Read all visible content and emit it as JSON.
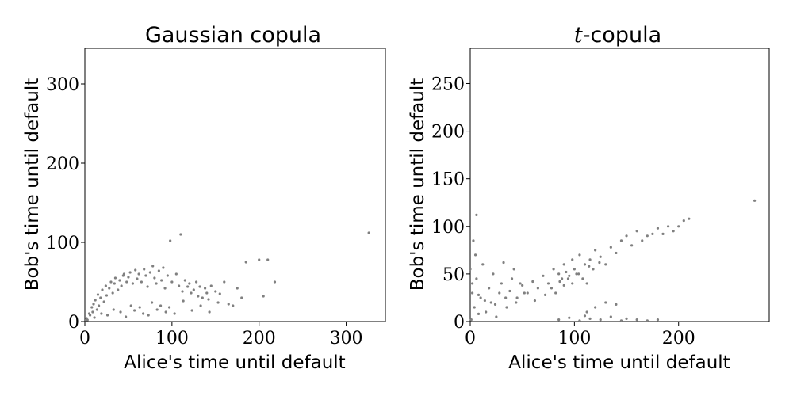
{
  "chart_data": [
    {
      "type": "scatter",
      "title": "Gaussian copula",
      "xlabel": "Alice's time until default",
      "ylabel": "Bob's time until default",
      "xlim": [
        0,
        345
      ],
      "ylim": [
        0,
        345
      ],
      "xticks": [
        0,
        100,
        200,
        300
      ],
      "yticks": [
        0,
        100,
        200,
        300
      ],
      "grid": false,
      "marker_color": "#808080",
      "points": {
        "x": [
          2,
          5,
          8,
          10,
          12,
          14,
          15,
          18,
          20,
          22,
          24,
          25,
          28,
          30,
          32,
          34,
          35,
          38,
          40,
          42,
          44,
          45,
          48,
          50,
          52,
          55,
          58,
          60,
          62,
          65,
          68,
          70,
          72,
          75,
          78,
          80,
          82,
          85,
          88,
          90,
          92,
          95,
          98,
          100,
          105,
          108,
          110,
          112,
          115,
          118,
          120,
          122,
          125,
          128,
          130,
          132,
          135,
          138,
          140,
          142,
          145,
          150,
          155,
          160,
          165,
          170,
          175,
          180,
          185,
          200,
          205,
          210,
          218,
          326,
          3,
          6,
          9,
          11,
          16,
          19,
          26,
          33,
          41,
          47,
          53,
          57,
          63,
          67,
          73,
          77,
          83,
          87,
          93,
          97,
          103,
          113,
          123,
          133,
          143,
          153
        ],
        "y": [
          4,
          10,
          18,
          22,
          27,
          15,
          34,
          30,
          40,
          25,
          45,
          33,
          42,
          50,
          36,
          48,
          55,
          40,
          52,
          45,
          58,
          60,
          50,
          56,
          62,
          48,
          65,
          54,
          60,
          50,
          66,
          58,
          44,
          62,
          70,
          55,
          48,
          64,
          52,
          68,
          42,
          58,
          102,
          50,
          60,
          45,
          110,
          38,
          52,
          44,
          48,
          36,
          40,
          50,
          32,
          44,
          30,
          42,
          36,
          28,
          45,
          38,
          35,
          50,
          22,
          20,
          42,
          30,
          75,
          78,
          32,
          78,
          50,
          112,
          2,
          8,
          12,
          5,
          20,
          10,
          8,
          15,
          12,
          6,
          20,
          14,
          18,
          10,
          8,
          24,
          15,
          20,
          12,
          18,
          10,
          26,
          14,
          20,
          12,
          24
        ]
      }
    },
    {
      "type": "scatter",
      "title": "t-copula",
      "title_italic_part": "t",
      "title_rest": "-copula",
      "xlabel": "Alice's time until default",
      "ylabel": "Bob's time until default",
      "xlim": [
        0,
        287
      ],
      "ylim": [
        0,
        287
      ],
      "xticks": [
        0,
        100,
        200
      ],
      "yticks": [
        0,
        50,
        100,
        150,
        200,
        250
      ],
      "grid": false,
      "marker_color": "#808080",
      "points": {
        "x": [
          1,
          2,
          4,
          6,
          8,
          10,
          12,
          15,
          18,
          20,
          22,
          25,
          28,
          30,
          32,
          35,
          38,
          40,
          42,
          45,
          48,
          50,
          55,
          60,
          65,
          70,
          75,
          80,
          85,
          88,
          90,
          92,
          95,
          98,
          100,
          102,
          105,
          108,
          110,
          112,
          115,
          118,
          120,
          125,
          130,
          135,
          140,
          145,
          150,
          155,
          160,
          165,
          170,
          175,
          180,
          185,
          190,
          195,
          200,
          205,
          210,
          273,
          6,
          3,
          5,
          85,
          95,
          105,
          110,
          115,
          125,
          135,
          145,
          150,
          160,
          170,
          180,
          120,
          112,
          130,
          140,
          0,
          2,
          8,
          14,
          24,
          34,
          44,
          52,
          62,
          72,
          78,
          82,
          86,
          90,
          94,
          98,
          104,
          114,
          124
        ],
        "y": [
          2,
          30,
          15,
          45,
          8,
          25,
          60,
          10,
          35,
          20,
          50,
          5,
          30,
          40,
          62,
          15,
          32,
          45,
          55,
          25,
          40,
          38,
          30,
          42,
          35,
          48,
          40,
          55,
          50,
          45,
          60,
          52,
          48,
          65,
          55,
          50,
          70,
          45,
          60,
          40,
          65,
          55,
          75,
          68,
          60,
          78,
          72,
          85,
          90,
          80,
          95,
          85,
          90,
          92,
          98,
          92,
          100,
          95,
          100,
          106,
          108,
          127,
          112,
          85,
          70,
          2,
          4,
          1,
          6,
          3,
          2,
          5,
          1,
          3,
          2,
          1,
          2,
          15,
          10,
          20,
          18,
          55,
          40,
          28,
          22,
          18,
          25,
          20,
          30,
          22,
          28,
          35,
          30,
          42,
          38,
          45,
          40,
          50,
          58,
          62
        ]
      }
    }
  ]
}
